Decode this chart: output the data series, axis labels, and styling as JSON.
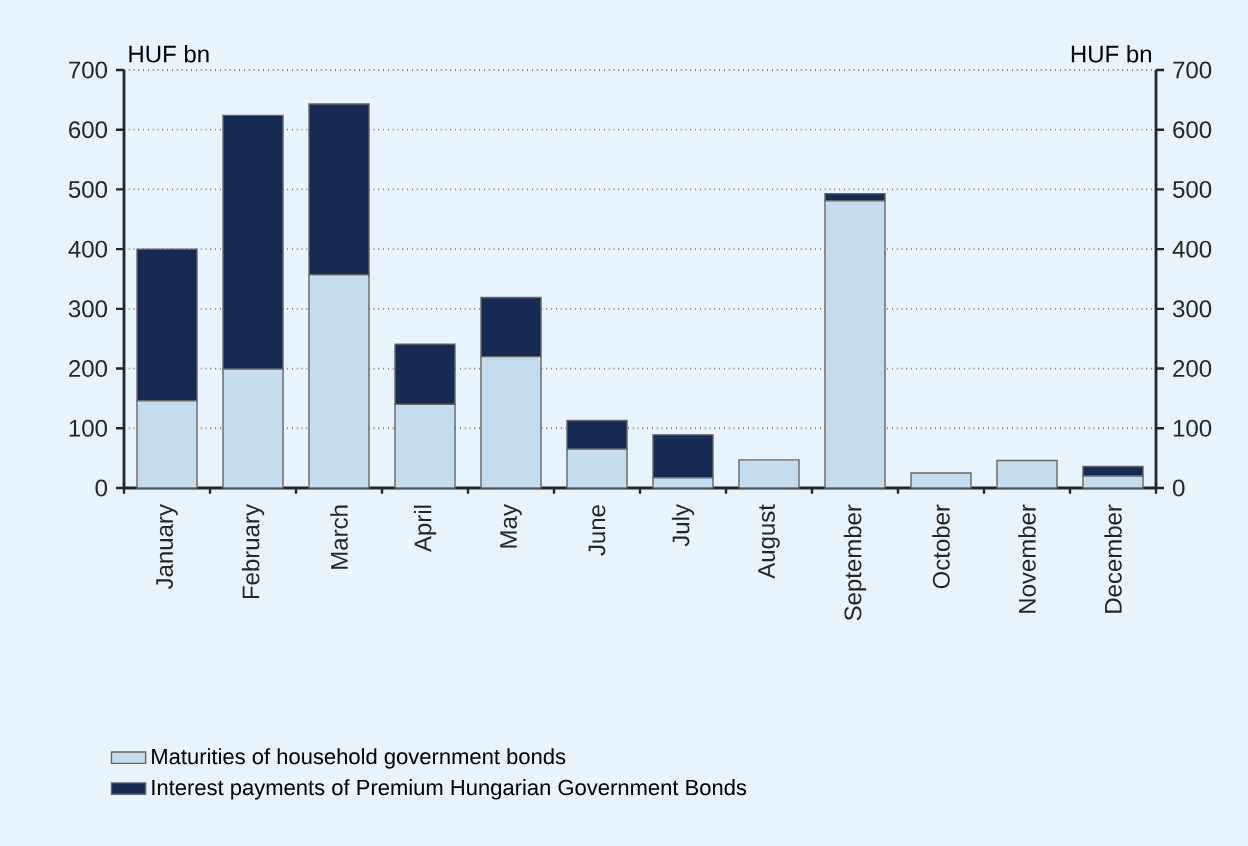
{
  "chart_data": {
    "type": "bar",
    "stacked": true,
    "annotations": [
      "HUF bn",
      "HUF bn"
    ],
    "categories": [
      "January",
      "February",
      "March",
      "April",
      "May",
      "June",
      "July",
      "August",
      "September",
      "October",
      "November",
      "December"
    ],
    "series": [
      {
        "name": "Maturities of household government bonds",
        "color": "#c5dcef",
        "values": [
          146,
          199,
          357,
          140,
          220,
          65,
          17,
          47,
          481,
          25,
          46,
          20
        ]
      },
      {
        "name": "Interest payments of Premium Hungarian Government Bonds",
        "color": "#172a53",
        "values": [
          254,
          425,
          286,
          101,
          99,
          48,
          72,
          0,
          12,
          0,
          0,
          16
        ]
      }
    ],
    "ylim": [
      0,
      700
    ],
    "yticks": [
      0,
      100,
      200,
      300,
      400,
      500,
      600,
      700
    ],
    "y2lim": [
      0,
      700
    ],
    "y2ticks": [
      0,
      100,
      200,
      300,
      400,
      500,
      600,
      700
    ],
    "grid": "y",
    "legend": "bottom"
  }
}
